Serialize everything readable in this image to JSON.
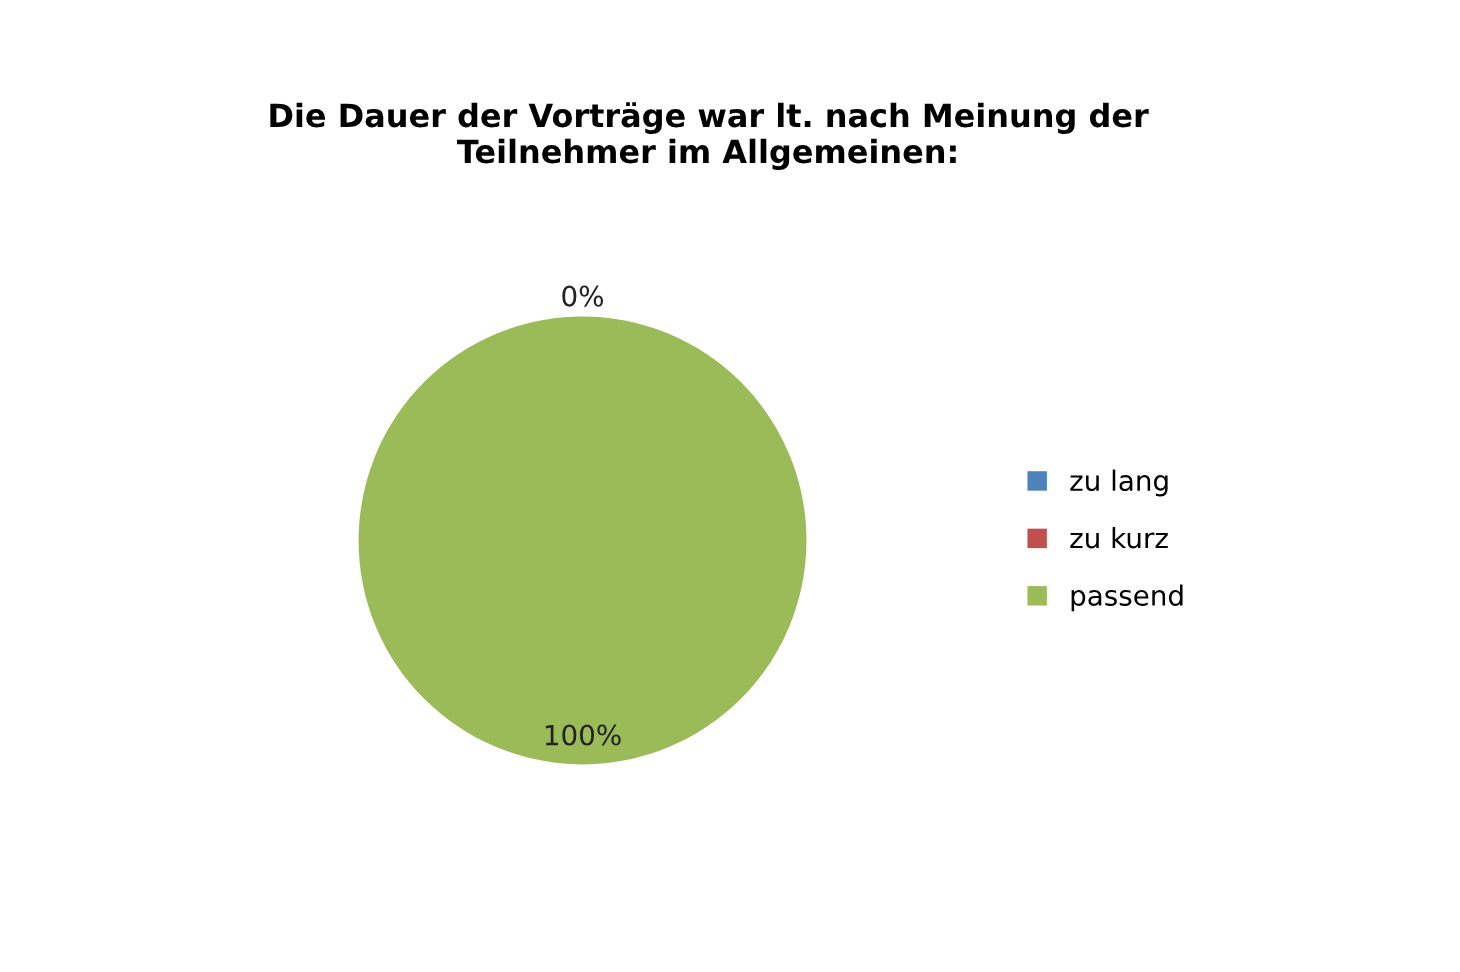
{
  "chart_data": {
    "type": "pie",
    "title": "Die Dauer der Vorträge war lt. nach Meinung der\nTeilnehmer im Allgemeinen:",
    "categories": [
      "zu lang",
      "zu kurz",
      "passend"
    ],
    "values": [
      0,
      0,
      100
    ],
    "colors": [
      "#4f81bd",
      "#c0504d",
      "#9bbb59"
    ],
    "value_labels": [
      "0%",
      null,
      "100%"
    ],
    "legend": "right"
  }
}
